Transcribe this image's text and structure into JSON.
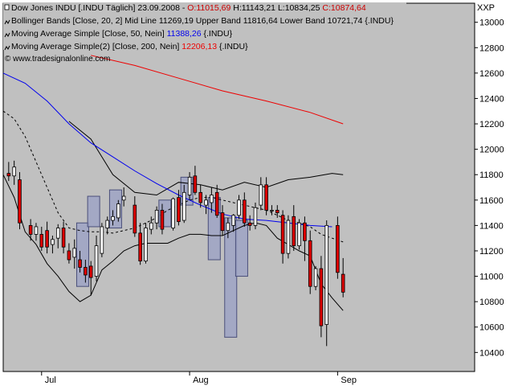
{
  "colors": {
    "plot_bg": "#c0c0c0",
    "up_candle": "#ffffff",
    "down_candle": "#dd0000",
    "bollinger": "#000000",
    "ma50": "#0000ee",
    "ma200": "#ee0000",
    "pattern_box": "#9da3c4",
    "pattern_box_border": "#4a4f7a"
  },
  "legend": {
    "line1": {
      "name": "Dow Jones INDU [.INDU  Täglich] 23.09.2008 - ",
      "o": "O:11015,69",
      "h": "H:11143,21",
      "l": "L:10834,25",
      "c": "C:10874,64"
    },
    "line2": {
      "name": "Bollinger Bands [Close, 20, 2]",
      "rest": " Mid Line 11269,19 Upper Band 11816,64 Lower Band 10721,74 {.INDU}"
    },
    "line3": {
      "name": "Moving Average Simple [Close, 50, Nein]",
      "value": "11388,26",
      "suffix": " {.INDU}"
    },
    "line4": {
      "name": "Moving Average Simple(2) [Close, 200, Nein]",
      "value": "12206,13",
      "suffix": " {.INDU}"
    },
    "copyright": "© www.tradesignalonline.com"
  },
  "chart_data": {
    "type": "candlestick",
    "corner_label": "XXP",
    "ylim": [
      10250,
      13150
    ],
    "y_ticks": [
      10400,
      10600,
      10800,
      11000,
      11200,
      11400,
      11600,
      11800,
      12000,
      12200,
      12400,
      12600,
      12800,
      13000
    ],
    "y_tick_labels": [
      "10400",
      "10600",
      "10800",
      "11000",
      "11200",
      "11400",
      "11600",
      "11800",
      "12000",
      "12200",
      "12400",
      "12600",
      "12800",
      "13000"
    ],
    "x_range": [
      0,
      86
    ],
    "x_ticks": [
      {
        "x": 7,
        "label": "Jul"
      },
      {
        "x": 34,
        "label": "Aug"
      },
      {
        "x": 61,
        "label": "Sep"
      }
    ],
    "candles": [
      {
        "o": 11810,
        "h": 11900,
        "l": 11750,
        "c": 11790
      },
      {
        "o": 11790,
        "h": 11910,
        "l": 11720,
        "c": 11860
      },
      {
        "o": 11760,
        "h": 11820,
        "l": 11370,
        "c": 11420
      },
      {
        "o": 11400,
        "h": 11450,
        "l": 11280,
        "c": 11330
      },
      {
        "o": 11330,
        "h": 11420,
        "l": 11280,
        "c": 11390
      },
      {
        "o": 11330,
        "h": 11390,
        "l": 11200,
        "c": 11230
      },
      {
        "o": 11360,
        "h": 11430,
        "l": 11180,
        "c": 11230
      },
      {
        "o": 11250,
        "h": 11320,
        "l": 11180,
        "c": 11290
      },
      {
        "o": 11300,
        "h": 11410,
        "l": 11220,
        "c": 11380
      },
      {
        "o": 11380,
        "h": 11430,
        "l": 11180,
        "c": 11230
      },
      {
        "o": 11200,
        "h": 11260,
        "l": 11100,
        "c": 11130
      },
      {
        "o": 11150,
        "h": 11290,
        "l": 11060,
        "c": 11220
      },
      {
        "o": 11130,
        "h": 11200,
        "l": 11030,
        "c": 11070
      },
      {
        "o": 11070,
        "h": 11130,
        "l": 10950,
        "c": 11010
      },
      {
        "o": 11080,
        "h": 11120,
        "l": 10850,
        "c": 10990
      },
      {
        "o": 11000,
        "h": 11320,
        "l": 10960,
        "c": 11240
      },
      {
        "o": 11180,
        "h": 11420,
        "l": 11150,
        "c": 11390
      },
      {
        "o": 11380,
        "h": 11470,
        "l": 11330,
        "c": 11440
      },
      {
        "o": 11440,
        "h": 11520,
        "l": 11400,
        "c": 11470
      },
      {
        "o": 11460,
        "h": 11600,
        "l": 11430,
        "c": 11570
      },
      {
        "o": 11600,
        "h": 11700,
        "l": 11550,
        "c": 11630
      },
      {
        "o": 11560,
        "h": 11630,
        "l": 11310,
        "c": 11340
      },
      {
        "o": 11340,
        "h": 11420,
        "l": 11090,
        "c": 11120
      },
      {
        "o": 11120,
        "h": 11420,
        "l": 11100,
        "c": 11380
      },
      {
        "o": 11370,
        "h": 11470,
        "l": 11330,
        "c": 11420
      },
      {
        "o": 11420,
        "h": 11550,
        "l": 11370,
        "c": 11520
      },
      {
        "o": 11520,
        "h": 11570,
        "l": 11330,
        "c": 11370
      },
      {
        "o": 11380,
        "h": 11620,
        "l": 11360,
        "c": 11610
      },
      {
        "o": 11620,
        "h": 11680,
        "l": 11400,
        "c": 11430
      },
      {
        "o": 11440,
        "h": 11720,
        "l": 11420,
        "c": 11660
      },
      {
        "o": 11640,
        "h": 11820,
        "l": 11600,
        "c": 11780
      },
      {
        "o": 11790,
        "h": 11870,
        "l": 11640,
        "c": 11660
      },
      {
        "o": 11660,
        "h": 11720,
        "l": 11540,
        "c": 11580
      },
      {
        "o": 11560,
        "h": 11640,
        "l": 11490,
        "c": 11600
      },
      {
        "o": 11580,
        "h": 11700,
        "l": 11500,
        "c": 11640
      },
      {
        "o": 11660,
        "h": 11720,
        "l": 11460,
        "c": 11480
      },
      {
        "o": 11500,
        "h": 11560,
        "l": 11320,
        "c": 11360
      },
      {
        "o": 11360,
        "h": 11460,
        "l": 11300,
        "c": 11420
      },
      {
        "o": 11400,
        "h": 11490,
        "l": 11350,
        "c": 11480
      },
      {
        "o": 11480,
        "h": 11640,
        "l": 11450,
        "c": 11600
      },
      {
        "o": 11600,
        "h": 11660,
        "l": 11390,
        "c": 11420
      },
      {
        "o": 11420,
        "h": 11480,
        "l": 11360,
        "c": 11400
      },
      {
        "o": 11400,
        "h": 11580,
        "l": 11370,
        "c": 11540
      },
      {
        "o": 11560,
        "h": 11780,
        "l": 11520,
        "c": 11720
      },
      {
        "o": 11720,
        "h": 11780,
        "l": 11480,
        "c": 11520
      },
      {
        "o": 11520,
        "h": 11560,
        "l": 11480,
        "c": 11520
      },
      {
        "o": 11520,
        "h": 11560,
        "l": 11460,
        "c": 11500
      },
      {
        "o": 11480,
        "h": 11520,
        "l": 11100,
        "c": 11180
      },
      {
        "o": 11180,
        "h": 11480,
        "l": 11140,
        "c": 11440
      },
      {
        "o": 11470,
        "h": 11560,
        "l": 11200,
        "c": 11240
      },
      {
        "o": 11240,
        "h": 11450,
        "l": 11210,
        "c": 11420
      },
      {
        "o": 11420,
        "h": 11470,
        "l": 11120,
        "c": 11280
      },
      {
        "o": 11280,
        "h": 11360,
        "l": 10860,
        "c": 10920
      },
      {
        "o": 10920,
        "h": 11080,
        "l": 10890,
        "c": 11060
      },
      {
        "o": 11060,
        "h": 11160,
        "l": 10520,
        "c": 10610
      },
      {
        "o": 10620,
        "h": 11440,
        "l": 10450,
        "c": 11400
      },
      {
        "o": 11400,
        "h": 11470,
        "l": 10980,
        "c": 11030
      },
      {
        "o": 11015.69,
        "h": 11143.21,
        "l": 10834.25,
        "c": 10874.64
      }
    ],
    "candle_x": [
      1,
      2,
      3,
      5,
      6,
      7,
      8,
      9,
      10,
      11,
      12,
      13,
      14,
      15,
      16,
      17,
      18,
      19,
      20,
      21,
      22,
      24,
      25,
      26,
      27,
      28,
      29,
      31,
      32,
      33,
      34,
      35,
      36,
      37,
      38,
      39,
      40,
      41,
      42,
      43,
      44,
      45,
      46,
      47,
      48,
      49,
      50,
      51,
      52,
      53,
      54,
      55,
      56,
      57,
      58,
      59,
      61,
      62
    ],
    "series": [
      {
        "key": "bb_upper",
        "style": "solid",
        "color_key": "bollinger",
        "x": [
          12,
          16,
          20,
          24,
          28,
          32,
          36,
          40,
          44,
          48,
          52,
          56,
          60,
          62
        ],
        "y": [
          12220,
          12080,
          11800,
          11660,
          11640,
          11740,
          11720,
          11680,
          11740,
          11700,
          11760,
          11780,
          11810,
          11800
        ]
      },
      {
        "key": "bb_mid",
        "style": "dashed",
        "color_key": "bollinger",
        "x": [
          0,
          2,
          4,
          6,
          8,
          10,
          12,
          14,
          16,
          18,
          20,
          22,
          24,
          26,
          28,
          30,
          32,
          34,
          36,
          38,
          40,
          42,
          44,
          46,
          48,
          50,
          52,
          54,
          56,
          58,
          60,
          62
        ],
        "y": [
          12300,
          12240,
          12100,
          11900,
          11700,
          11500,
          11380,
          11360,
          11350,
          11350,
          11340,
          11360,
          11380,
          11420,
          11460,
          11520,
          11560,
          11600,
          11620,
          11620,
          11600,
          11580,
          11560,
          11540,
          11520,
          11480,
          11440,
          11420,
          11390,
          11330,
          11300,
          11270
        ]
      },
      {
        "key": "bb_lower",
        "style": "solid",
        "color_key": "bollinger",
        "x": [
          0,
          2,
          4,
          6,
          8,
          10,
          12,
          14,
          16,
          18,
          20,
          22,
          24,
          26,
          28,
          30,
          32,
          34,
          36,
          38,
          40,
          42,
          44,
          46,
          48,
          50,
          52,
          54,
          56,
          58,
          60,
          62
        ],
        "y": [
          11800,
          11620,
          11350,
          11250,
          11100,
          11000,
          10880,
          10800,
          10850,
          11050,
          11120,
          11200,
          11240,
          11260,
          11260,
          11260,
          11300,
          11330,
          11330,
          11320,
          11320,
          11360,
          11400,
          11420,
          11400,
          11300,
          11250,
          11200,
          11160,
          10940,
          10830,
          10730
        ]
      },
      {
        "key": "ma50",
        "style": "solid",
        "color_key": "ma50",
        "x": [
          0,
          4,
          8,
          12,
          16,
          20,
          24,
          28,
          32,
          36,
          40,
          44,
          48,
          52,
          56,
          60
        ],
        "y": [
          12600,
          12520,
          12380,
          12200,
          12050,
          11940,
          11830,
          11730,
          11640,
          11560,
          11490,
          11450,
          11440,
          11420,
          11400,
          11390
        ]
      },
      {
        "key": "ma200",
        "style": "solid",
        "color_key": "ma200",
        "x": [
          16,
          24,
          32,
          40,
          48,
          56,
          62
        ],
        "y": [
          12740,
          12660,
          12560,
          12460,
          12380,
          12290,
          12200
        ]
      }
    ],
    "pattern_boxes": [
      {
        "x0": 13.4,
        "x1": 15.6,
        "y0": 11420,
        "y1": 10920
      },
      {
        "x0": 15.4,
        "x1": 17.6,
        "y0": 11630,
        "y1": 11390
      },
      {
        "x0": 19.4,
        "x1": 21.6,
        "y0": 11680,
        "y1": 11380
      },
      {
        "x0": 28.4,
        "x1": 30.6,
        "y0": 11600,
        "y1": 11390
      },
      {
        "x0": 32.4,
        "x1": 34.6,
        "y0": 11780,
        "y1": 11560
      },
      {
        "x0": 37.4,
        "x1": 39.6,
        "y0": 11620,
        "y1": 11130
      },
      {
        "x0": 40.4,
        "x1": 42.6,
        "y0": 11460,
        "y1": 10520
      },
      {
        "x0": 42.4,
        "x1": 44.6,
        "y0": 11440,
        "y1": 11000
      }
    ]
  }
}
